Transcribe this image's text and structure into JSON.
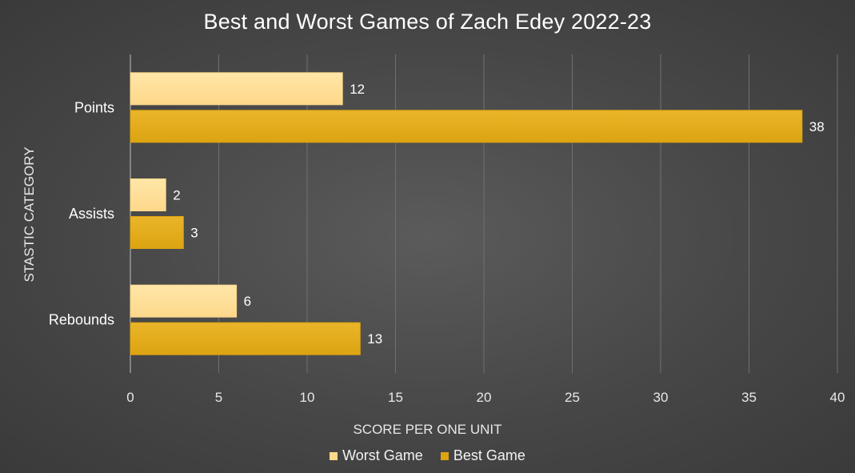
{
  "chart_data": {
    "type": "bar",
    "orientation": "horizontal",
    "title": "Best and Worst Games of Zach Edey 2022-23",
    "xlabel": "SCORE PER ONE UNIT",
    "ylabel": "STASTIC CATEGORY",
    "categories": [
      "Points",
      "Assists",
      "Rebounds"
    ],
    "series": [
      {
        "name": "Worst Game",
        "values": [
          12,
          2,
          6
        ],
        "color": "#fdd88a"
      },
      {
        "name": "Best Game",
        "values": [
          38,
          3,
          13
        ],
        "color": "#dca411"
      }
    ],
    "xlim": [
      0,
      40
    ],
    "xticks": [
      0,
      5,
      10,
      15,
      20,
      25,
      30,
      35,
      40
    ],
    "grid": "vertical",
    "legend": "bottom",
    "data_labels": true
  },
  "colors": {
    "background": "#4a4a4a",
    "text": "#ffffff",
    "gridline": "#707070"
  }
}
